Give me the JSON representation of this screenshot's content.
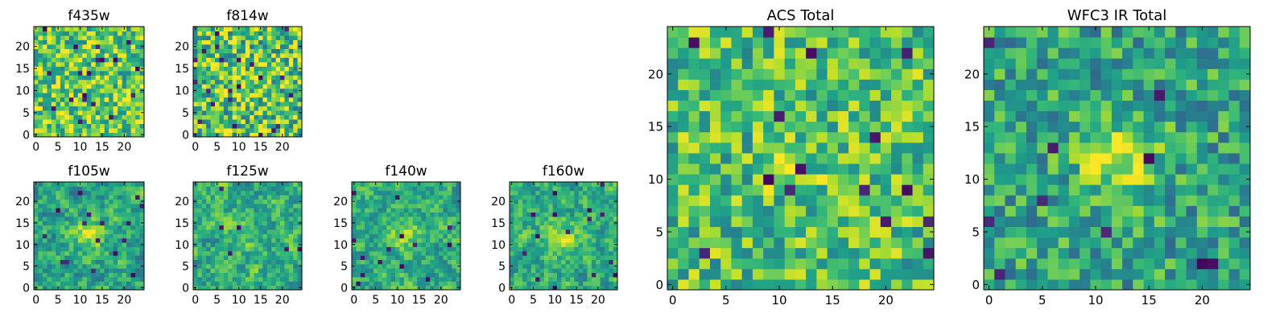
{
  "figure": {
    "background": "#ffffff",
    "colormap": "viridis"
  },
  "chart_data": [
    {
      "type": "heatmap",
      "title": "f435w",
      "size": 25,
      "xticks": [
        0,
        5,
        10,
        15,
        20
      ],
      "yticks": [
        0,
        5,
        10,
        15,
        20
      ],
      "xticklabels": [
        "0",
        "5",
        "10",
        "15",
        "20"
      ],
      "yticklabels": [
        "0",
        "5",
        "10",
        "15",
        "20"
      ],
      "xlim": [
        -0.5,
        24.5
      ],
      "ylim": [
        -0.5,
        24.5
      ],
      "grid": false
    },
    {
      "type": "heatmap",
      "title": "f814w",
      "size": 25,
      "xticks": [
        0,
        5,
        10,
        15,
        20
      ],
      "yticks": [
        0,
        5,
        10,
        15,
        20
      ],
      "xticklabels": [
        "0",
        "5",
        "10",
        "15",
        "20"
      ],
      "yticklabels": [
        "0",
        "5",
        "10",
        "15",
        "20"
      ],
      "xlim": [
        -0.5,
        24.5
      ],
      "ylim": [
        -0.5,
        24.5
      ],
      "grid": false
    },
    {
      "type": "heatmap",
      "title": "f105w",
      "size": 25,
      "xticks": [
        0,
        5,
        10,
        15,
        20
      ],
      "yticks": [
        0,
        5,
        10,
        15,
        20
      ],
      "xticklabels": [
        "0",
        "5",
        "10",
        "15",
        "20"
      ],
      "yticklabels": [
        "0",
        "5",
        "10",
        "15",
        "20"
      ],
      "xlim": [
        -0.5,
        24.5
      ],
      "ylim": [
        -0.5,
        24.5
      ],
      "grid": false
    },
    {
      "type": "heatmap",
      "title": "f125w",
      "size": 25,
      "xticks": [
        0,
        5,
        10,
        15,
        20
      ],
      "yticks": [
        0,
        5,
        10,
        15,
        20
      ],
      "xticklabels": [
        "0",
        "5",
        "10",
        "15",
        "20"
      ],
      "yticklabels": [
        "0",
        "5",
        "10",
        "15",
        "20"
      ],
      "xlim": [
        -0.5,
        24.5
      ],
      "ylim": [
        -0.5,
        24.5
      ],
      "grid": false
    },
    {
      "type": "heatmap",
      "title": "f140w",
      "size": 25,
      "xticks": [
        0,
        5,
        10,
        15,
        20
      ],
      "yticks": [
        0,
        5,
        10,
        15,
        20
      ],
      "xticklabels": [
        "0",
        "5",
        "10",
        "15",
        "20"
      ],
      "yticklabels": [
        "0",
        "5",
        "10",
        "15",
        "20"
      ],
      "xlim": [
        -0.5,
        24.5
      ],
      "ylim": [
        -0.5,
        24.5
      ],
      "grid": false
    },
    {
      "type": "heatmap",
      "title": "f160w",
      "size": 25,
      "xticks": [
        0,
        5,
        10,
        15,
        20
      ],
      "yticks": [
        0,
        5,
        10,
        15,
        20
      ],
      "xticklabels": [
        "0",
        "5",
        "10",
        "15",
        "20"
      ],
      "yticklabels": [
        "0",
        "5",
        "10",
        "15",
        "20"
      ],
      "xlim": [
        -0.5,
        24.5
      ],
      "ylim": [
        -0.5,
        24.5
      ],
      "grid": false
    },
    {
      "type": "heatmap",
      "title": "ACS Total",
      "size": 25,
      "xticks": [
        0,
        5,
        10,
        15,
        20
      ],
      "yticks": [
        0,
        5,
        10,
        15,
        20
      ],
      "xticklabels": [
        "0",
        "5",
        "10",
        "15",
        "20"
      ],
      "yticklabels": [
        "0",
        "5",
        "10",
        "15",
        "20"
      ],
      "xlim": [
        -0.5,
        24.5
      ],
      "ylim": [
        -0.5,
        24.5
      ],
      "grid": false
    },
    {
      "type": "heatmap",
      "title": "WFC3 IR Total",
      "size": 25,
      "xticks": [
        0,
        5,
        10,
        15,
        20
      ],
      "yticks": [
        0,
        5,
        10,
        15,
        20
      ],
      "xticklabels": [
        "0",
        "5",
        "10",
        "15",
        "20"
      ],
      "yticklabels": [
        "0",
        "5",
        "10",
        "15",
        "20"
      ],
      "xlim": [
        -0.5,
        24.5
      ],
      "ylim": [
        -0.5,
        24.5
      ],
      "grid": false
    }
  ]
}
